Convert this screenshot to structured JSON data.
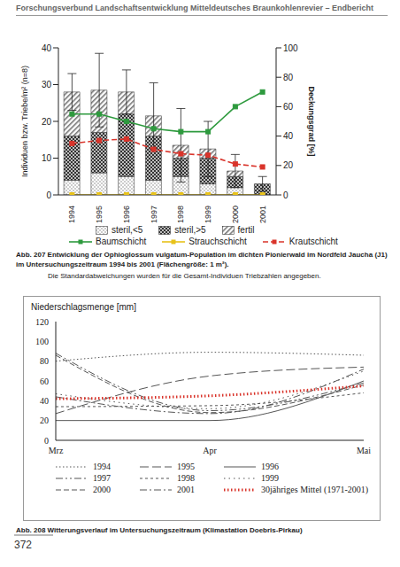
{
  "header": "Forschungsverbund Landschaftsentwicklung Mitteldeutsches Braunkohlenrevier – Endbericht",
  "page_number": "372",
  "chart_data": [
    {
      "type": "bar",
      "title": "Abb. 207  Entwicklung der Ophioglossum vulgatum-Population im dichten Pionierwald im Nordfeld Jaucha (J1) im Untersuchungszeitraum 1994 bis 2001 (Flächengröße: 1 m²).",
      "subtitle": "Die Standardabweichungen wurden für die Gesamt-Individuen Triebzahlen angegeben.",
      "y_label": "Individuen bzw. Triebe/m² (n=8)",
      "y2_label": "Deckungsgrad [%]",
      "categories": [
        "1994",
        "1995",
        "1996",
        "1997",
        "1998",
        "1999",
        "2000",
        "2001"
      ],
      "stacked": true,
      "ylim": [
        0,
        40
      ],
      "yticks": [
        0,
        10,
        20,
        30,
        40
      ],
      "y2lim": [
        0,
        100
      ],
      "y2ticks": [
        0,
        20,
        40,
        60,
        80,
        100
      ],
      "std_dev": [
        5,
        10,
        6,
        9,
        10,
        7.5,
        4.5,
        2
      ],
      "series": [
        {
          "name": "steril,<5",
          "type": "bar",
          "color": "#8c8c8c",
          "values": [
            4,
            6,
            5,
            4,
            5,
            3,
            2,
            0
          ]
        },
        {
          "name": "steril,>5",
          "type": "bar",
          "color": "#333333",
          "values": [
            12,
            11,
            17,
            12,
            5,
            7,
            3,
            3
          ]
        },
        {
          "name": "fertil",
          "type": "bar",
          "color": "#777777",
          "values": [
            12,
            11.5,
            6,
            5.5,
            3.5,
            2.5,
            1.5,
            0
          ]
        },
        {
          "name": "Baumschicht",
          "type": "line",
          "axis": "y2",
          "color": "#2e9a3e",
          "marker": "square",
          "line_style": "solid",
          "values": [
            55,
            55,
            50,
            45,
            43,
            43,
            60,
            70
          ]
        },
        {
          "name": "Strauchschicht",
          "type": "line",
          "axis": "y2",
          "color": "#e8c21a",
          "marker": "square",
          "line_style": "solid",
          "values": [
            0,
            0,
            0,
            0,
            0,
            0,
            0,
            0
          ]
        },
        {
          "name": "Krautschicht",
          "type": "line",
          "axis": "y2",
          "color": "#d9342b",
          "marker": "square",
          "line_style": "dashed",
          "values": [
            35,
            37,
            38,
            31,
            28,
            27,
            21,
            19
          ]
        }
      ]
    },
    {
      "type": "line",
      "title": "Abb. 208  Witterungsverlauf im Untersuchungszeitraum (Klimastation Doebris-Pirkau)",
      "y_label": "Niederschlagsmenge [mm]",
      "categories": [
        "Mrz",
        "Apr",
        "Mai"
      ],
      "ylim": [
        0,
        120
      ],
      "yticks": [
        0,
        20,
        40,
        60,
        80,
        100,
        120
      ],
      "series": [
        {
          "name": "1994",
          "color": "#555555",
          "line_style": "dotted",
          "values": [
            80,
            89,
            86
          ]
        },
        {
          "name": "1995",
          "color": "#555555",
          "line_style": "long_dash",
          "values": [
            27,
            65,
            74
          ]
        },
        {
          "name": "1996",
          "color": "#555555",
          "line_style": "solid",
          "values": [
            20,
            20,
            60
          ]
        },
        {
          "name": "1997",
          "color": "#555555",
          "line_style": "dash_dot_dot",
          "values": [
            88,
            30,
            58
          ]
        },
        {
          "name": "1998",
          "color": "#555555",
          "line_style": "short_dash",
          "values": [
            34,
            35,
            48
          ]
        },
        {
          "name": "1999",
          "color": "#555555",
          "line_style": "sparse_dot",
          "values": [
            47,
            32,
            70
          ]
        },
        {
          "name": "2000",
          "color": "#555555",
          "line_style": "dashed",
          "values": [
            86,
            28,
            56
          ]
        },
        {
          "name": "2001",
          "color": "#555555",
          "line_style": "dash_dot",
          "values": [
            44,
            27,
            72
          ]
        },
        {
          "name": "30jähriges Mittel (1971-2001)",
          "color": "#d9342b",
          "line_style": "dotted",
          "values": [
            42,
            45,
            55
          ]
        }
      ]
    }
  ]
}
